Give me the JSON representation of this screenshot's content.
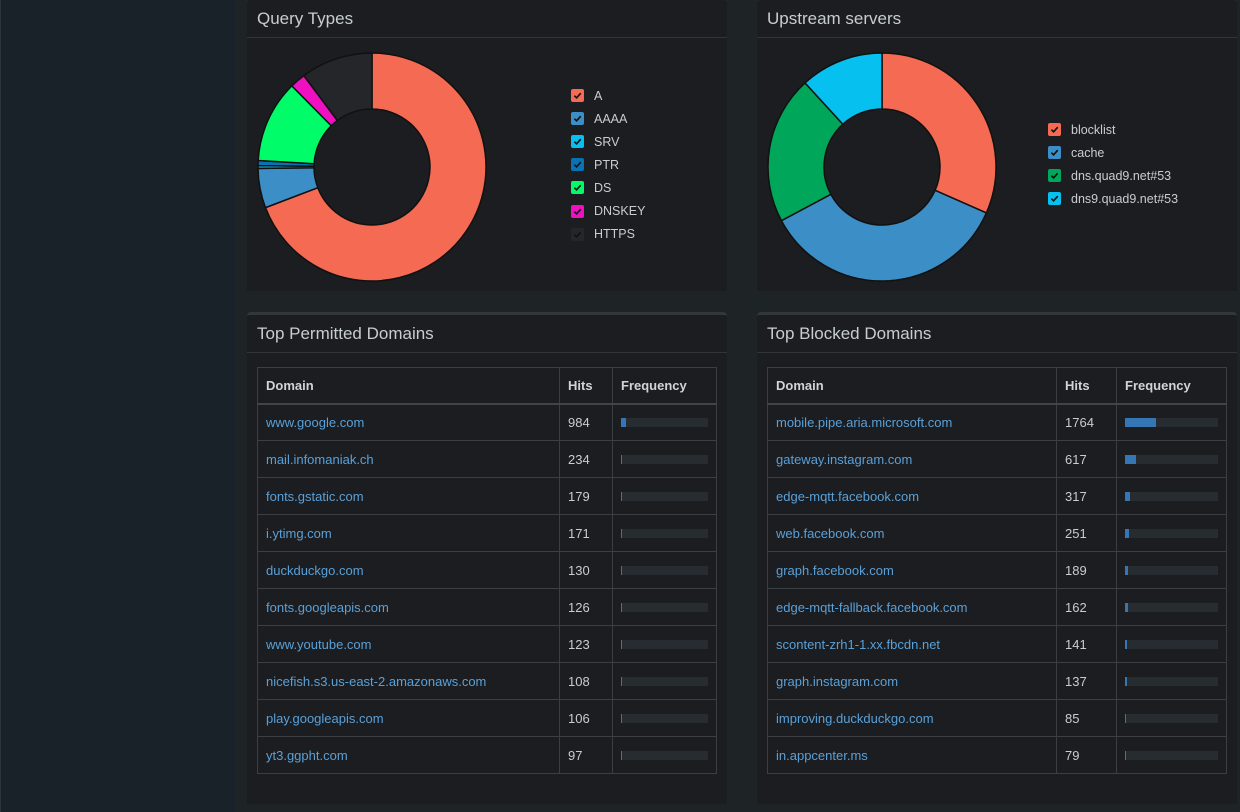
{
  "query_types": {
    "title": "Query Types",
    "chart_data": {
      "type": "pie",
      "labels": [
        "A",
        "AAAA",
        "SRV",
        "PTR",
        "DS",
        "DNSKEY",
        "HTTPS"
      ],
      "values": [
        69.2,
        5.6,
        0.4,
        0.7,
        11.7,
        2.2,
        10.2
      ],
      "colors": [
        "#f56a53",
        "#3c8ec6",
        "#06c0ef",
        "#0a72b3",
        "#01fc6a",
        "#ef11c1",
        "#252629"
      ],
      "legend": "right"
    },
    "legend": [
      {
        "label": "A",
        "color": "#f56a53",
        "icon": "check-icon"
      },
      {
        "label": "AAAA",
        "color": "#3c8ec6",
        "icon": "check-icon"
      },
      {
        "label": "SRV",
        "color": "#06c0ef",
        "icon": "check-icon"
      },
      {
        "label": "PTR",
        "color": "#0a72b3",
        "icon": "check-icon"
      },
      {
        "label": "DS",
        "color": "#01fc6a",
        "icon": "check-icon"
      },
      {
        "label": "DNSKEY",
        "color": "#ef11c1",
        "icon": "check-icon"
      },
      {
        "label": "HTTPS",
        "color": "#252629",
        "icon": "check-icon"
      }
    ]
  },
  "upstream": {
    "title": "Upstream servers",
    "chart_data": {
      "type": "pie",
      "labels": [
        "blocklist",
        "cache",
        "dns.quad9.net#53",
        "dns9.quad9.net#53"
      ],
      "values": [
        31.6,
        35.6,
        21.0,
        11.8
      ],
      "colors": [
        "#f56a53",
        "#3c8ec6",
        "#00a65a",
        "#06c0ef"
      ],
      "legend": "right"
    },
    "legend": [
      {
        "label": "blocklist",
        "color": "#f56a53",
        "icon": "check-icon"
      },
      {
        "label": "cache",
        "color": "#3c8ec6",
        "icon": "check-icon"
      },
      {
        "label": "dns.quad9.net#53",
        "color": "#00a65a",
        "icon": "check-icon"
      },
      {
        "label": "dns9.quad9.net#53",
        "color": "#06c0ef",
        "icon": "check-icon"
      }
    ]
  },
  "permitted": {
    "title": "Top Permitted Domains",
    "columns": [
      "Domain",
      "Hits",
      "Frequency"
    ],
    "rows": [
      {
        "domain": "www.google.com",
        "hits": "984",
        "freq": 0.06
      },
      {
        "domain": "mail.infomaniak.ch",
        "hits": "234",
        "freq": 0.015
      },
      {
        "domain": "fonts.gstatic.com",
        "hits": "179",
        "freq": 0.011
      },
      {
        "domain": "i.ytimg.com",
        "hits": "171",
        "freq": 0.011
      },
      {
        "domain": "duckduckgo.com",
        "hits": "130",
        "freq": 0.008
      },
      {
        "domain": "fonts.googleapis.com",
        "hits": "126",
        "freq": 0.008
      },
      {
        "domain": "www.youtube.com",
        "hits": "123",
        "freq": 0.008
      },
      {
        "domain": "nicefish.s3.us-east-2.amazonaws.com",
        "hits": "108",
        "freq": 0.007
      },
      {
        "domain": "play.googleapis.com",
        "hits": "106",
        "freq": 0.007
      },
      {
        "domain": "yt3.ggpht.com",
        "hits": "97",
        "freq": 0.006
      }
    ]
  },
  "blocked": {
    "title": "Top Blocked Domains",
    "columns": [
      "Domain",
      "Hits",
      "Frequency"
    ],
    "rows": [
      {
        "domain": "mobile.pipe.aria.microsoft.com",
        "hits": "1764",
        "freq": 0.33
      },
      {
        "domain": "gateway.instagram.com",
        "hits": "617",
        "freq": 0.115
      },
      {
        "domain": "edge-mqtt.facebook.com",
        "hits": "317",
        "freq": 0.059
      },
      {
        "domain": "web.facebook.com",
        "hits": "251",
        "freq": 0.047
      },
      {
        "domain": "graph.facebook.com",
        "hits": "189",
        "freq": 0.035
      },
      {
        "domain": "edge-mqtt-fallback.facebook.com",
        "hits": "162",
        "freq": 0.03
      },
      {
        "domain": "scontent-zrh1-1.xx.fbcdn.net",
        "hits": "141",
        "freq": 0.026
      },
      {
        "domain": "graph.instagram.com",
        "hits": "137",
        "freq": 0.026
      },
      {
        "domain": "improving.duckduckgo.com",
        "hits": "85",
        "freq": 0.016
      },
      {
        "domain": "in.appcenter.ms",
        "hits": "79",
        "freq": 0.015
      }
    ]
  }
}
